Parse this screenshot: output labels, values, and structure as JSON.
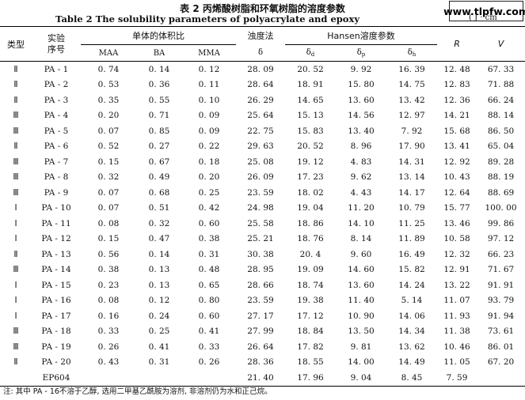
{
  "title_cn": "表 2 丙烯酸树脂和环氧树脂的溶度参数",
  "title_en": "Table 2   The solubility parameters of polyacrylate and epoxy",
  "watermark": "www.tlpfw.com",
  "unit": "( J · cm",
  "headers": {
    "type": "类型",
    "exp_no": "实验\n序号",
    "monomer_group": "单体的体积比",
    "maa": "MAA",
    "ba": "BA",
    "mma": "MMA",
    "turbidity_group": "浊度法",
    "delta": "δ",
    "hansen_group": "Hansen溶度参数",
    "delta_d": "δ",
    "delta_d_sub": "d",
    "delta_p": "δ",
    "delta_p_sub": "p",
    "delta_h": "δ",
    "delta_h_sub": "h",
    "r": "R",
    "v": "V"
  },
  "rows": [
    {
      "type": "Ⅱ",
      "id": "PA - 1",
      "maa": "0. 74",
      "ba": "0. 14",
      "mma": "0. 12",
      "delta": "28. 09",
      "dd": "20. 52",
      "dp": "9. 92",
      "dh": "16. 39",
      "r": "12. 48",
      "v": "67. 33"
    },
    {
      "type": "Ⅱ",
      "id": "PA - 2",
      "maa": "0. 53",
      "ba": "0. 36",
      "mma": "0. 11",
      "delta": "28. 64",
      "dd": "18. 91",
      "dp": "15. 80",
      "dh": "14. 75",
      "r": "12. 83",
      "v": "71. 88"
    },
    {
      "type": "Ⅱ",
      "id": "PA - 3",
      "maa": "0. 35",
      "ba": "0. 55",
      "mma": "0. 10",
      "delta": "26. 29",
      "dd": "14. 65",
      "dp": "13. 60",
      "dh": "13. 42",
      "r": "12. 36",
      "v": "66. 24"
    },
    {
      "type": "Ⅲ",
      "id": "PA - 4",
      "maa": "0. 20",
      "ba": "0. 71",
      "mma": "0. 09",
      "delta": "25. 64",
      "dd": "15. 13",
      "dp": "14. 56",
      "dh": "12. 97",
      "r": "14. 21",
      "v": "88. 14"
    },
    {
      "type": "Ⅲ",
      "id": "PA - 5",
      "maa": "0. 07",
      "ba": "0. 85",
      "mma": "0. 09",
      "delta": "22. 75",
      "dd": "15. 83",
      "dp": "13. 40",
      "dh": "7. 92",
      "r": "15. 68",
      "v": "86. 50"
    },
    {
      "type": "Ⅱ",
      "id": "PA - 6",
      "maa": "0. 52",
      "ba": "0. 27",
      "mma": "0. 22",
      "delta": "29. 63",
      "dd": "20. 52",
      "dp": "8. 96",
      "dh": "17. 90",
      "r": "13. 41",
      "v": "65. 04"
    },
    {
      "type": "Ⅲ",
      "id": "PA - 7",
      "maa": "0. 15",
      "ba": "0. 67",
      "mma": "0. 18",
      "delta": "25. 08",
      "dd": "19. 12",
      "dp": "4. 83",
      "dh": "14. 31",
      "r": "12. 92",
      "v": "89. 28"
    },
    {
      "type": "Ⅲ",
      "id": "PA - 8",
      "maa": "0. 32",
      "ba": "0. 49",
      "mma": "0. 20",
      "delta": "26. 09",
      "dd": "17. 23",
      "dp": "9. 62",
      "dh": "13. 14",
      "r": "10. 43",
      "v": "88. 19"
    },
    {
      "type": "Ⅲ",
      "id": "PA - 9",
      "maa": "0. 07",
      "ba": "0. 68",
      "mma": "0. 25",
      "delta": "23. 59",
      "dd": "18. 02",
      "dp": "4. 43",
      "dh": "14. 17",
      "r": "12. 64",
      "v": "88. 69"
    },
    {
      "type": "Ⅰ",
      "id": "PA - 10",
      "maa": "0. 07",
      "ba": "0. 51",
      "mma": "0. 42",
      "delta": "24. 98",
      "dd": "19. 04",
      "dp": "11. 20",
      "dh": "10. 79",
      "r": "15. 77",
      "v": "100. 00"
    },
    {
      "type": "Ⅰ",
      "id": "PA - 11",
      "maa": "0. 08",
      "ba": "0. 32",
      "mma": "0. 60",
      "delta": "25. 58",
      "dd": "18. 86",
      "dp": "14. 10",
      "dh": "11. 25",
      "r": "13. 46",
      "v": "99. 86"
    },
    {
      "type": "Ⅰ",
      "id": "PA - 12",
      "maa": "0. 15",
      "ba": "0. 47",
      "mma": "0. 38",
      "delta": "25. 21",
      "dd": "18. 76",
      "dp": "8. 14",
      "dh": "11. 89",
      "r": "10. 58",
      "v": "97. 12"
    },
    {
      "type": "Ⅱ",
      "id": "PA - 13",
      "maa": "0. 56",
      "ba": "0. 14",
      "mma": "0. 31",
      "delta": "30. 38",
      "dd": "20. 4",
      "dp": "9. 60",
      "dh": "16. 49",
      "r": "12. 32",
      "v": "66. 23"
    },
    {
      "type": "Ⅲ",
      "id": "PA - 14",
      "maa": "0. 38",
      "ba": "0. 13",
      "mma": "0. 48",
      "delta": "28. 95",
      "dd": "19. 09",
      "dp": "14. 60",
      "dh": "15. 82",
      "r": "12. 91",
      "v": "71. 67"
    },
    {
      "type": "Ⅰ",
      "id": "PA - 15",
      "maa": "0. 23",
      "ba": "0. 13",
      "mma": "0. 65",
      "delta": "28. 66",
      "dd": "18. 74",
      "dp": "13. 60",
      "dh": "14. 24",
      "r": "13. 22",
      "v": "91. 91"
    },
    {
      "type": "Ⅰ",
      "id": "PA - 16",
      "maa": "0. 08",
      "ba": "0. 12",
      "mma": "0. 80",
      "delta": "23. 59",
      "dd": "19. 38",
      "dp": "11. 40",
      "dh": "5. 14",
      "r": "11. 07",
      "v": "93. 79"
    },
    {
      "type": "Ⅰ",
      "id": "PA - 17",
      "maa": "0. 16",
      "ba": "0. 24",
      "mma": "0. 60",
      "delta": "27. 17",
      "dd": "17. 12",
      "dp": "10. 90",
      "dh": "14. 06",
      "r": "11. 93",
      "v": "91. 94"
    },
    {
      "type": "Ⅲ",
      "id": "PA - 18",
      "maa": "0. 33",
      "ba": "0. 25",
      "mma": "0. 41",
      "delta": "27. 99",
      "dd": "18. 84",
      "dp": "13. 50",
      "dh": "14. 34",
      "r": "11. 38",
      "v": "73. 61"
    },
    {
      "type": "Ⅲ",
      "id": "PA - 19",
      "maa": "0. 26",
      "ba": "0. 41",
      "mma": "0. 33",
      "delta": "26. 64",
      "dd": "17. 82",
      "dp": "9. 81",
      "dh": "13. 62",
      "r": "10. 46",
      "v": "86. 01"
    },
    {
      "type": "Ⅱ",
      "id": "PA - 20",
      "maa": "0. 43",
      "ba": "0. 31",
      "mma": "0. 26",
      "delta": "28. 36",
      "dd": "18. 55",
      "dp": "14. 00",
      "dh": "14. 49",
      "r": "11. 05",
      "v": "67. 20"
    },
    {
      "type": "",
      "id": "EP604",
      "maa": "",
      "ba": "",
      "mma": "",
      "delta": "21. 40",
      "dd": "17. 96",
      "dp": "9. 04",
      "dh": "8. 45",
      "r": "7. 59",
      "v": ""
    }
  ],
  "note": "注: 其中 PA - 16不溶于乙醇, 选用二甲基乙酰胺为溶剂, 非溶剂仍为水和正己烷。"
}
